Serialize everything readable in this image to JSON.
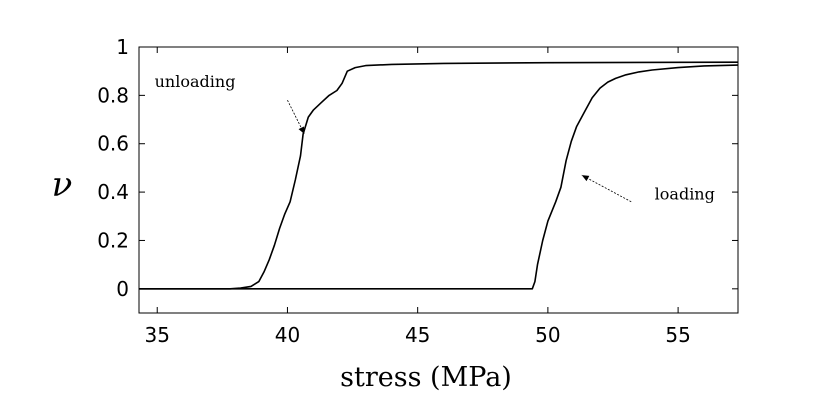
{
  "chart_data": {
    "type": "line",
    "title": "",
    "xlabel": "stress (MPa)",
    "ylabel": "ν",
    "xlim": [
      34.3,
      57.3
    ],
    "ylim": [
      -0.1,
      1.0
    ],
    "xticks": [
      35,
      40,
      45,
      50,
      55
    ],
    "yticks": [
      0,
      0.2,
      0.4,
      0.6,
      0.8,
      1
    ],
    "ytick_labels": [
      "0",
      "0.2",
      "0.4",
      "0.6",
      "0.8",
      "1"
    ],
    "grid": false,
    "legend": "none",
    "series": [
      {
        "x": [
          34.3,
          37.8,
          38.2,
          38.6,
          38.9,
          39.1,
          39.3,
          39.5,
          39.7,
          39.9,
          40.1,
          40.3,
          40.5,
          40.6,
          40.8,
          41.0,
          41.3,
          41.6,
          41.9,
          42.1,
          42.3,
          42.6,
          43.0,
          44.0,
          46.0,
          50.0,
          57.3
        ],
        "y": [
          0,
          0,
          0.003,
          0.01,
          0.03,
          0.07,
          0.12,
          0.18,
          0.25,
          0.31,
          0.36,
          0.45,
          0.55,
          0.64,
          0.71,
          0.74,
          0.77,
          0.8,
          0.82,
          0.85,
          0.9,
          0.915,
          0.923,
          0.928,
          0.932,
          0.935,
          0.937
        ]
      },
      {
        "x": [
          34.3,
          49.4,
          49.5,
          49.6,
          49.8,
          50.0,
          50.3,
          50.5,
          50.7,
          50.9,
          51.1,
          51.4,
          51.7,
          52.0,
          52.3,
          52.6,
          53.0,
          53.5,
          54.0,
          55.0,
          56.0,
          57.3
        ],
        "y": [
          0,
          0,
          0.03,
          0.1,
          0.2,
          0.28,
          0.36,
          0.42,
          0.53,
          0.61,
          0.67,
          0.73,
          0.79,
          0.83,
          0.855,
          0.87,
          0.885,
          0.897,
          0.905,
          0.915,
          0.922,
          0.925
        ]
      }
    ],
    "annotations": [
      {
        "text": "unloading",
        "x": 34.9,
        "y": 0.835,
        "arrow_from": [
          40.0,
          0.78
        ],
        "arrow_to": [
          40.65,
          0.64
        ]
      },
      {
        "text": "loading",
        "x": 54.1,
        "y": 0.37,
        "arrow_from": [
          53.2,
          0.36
        ],
        "arrow_to": [
          51.3,
          0.47
        ]
      }
    ]
  }
}
